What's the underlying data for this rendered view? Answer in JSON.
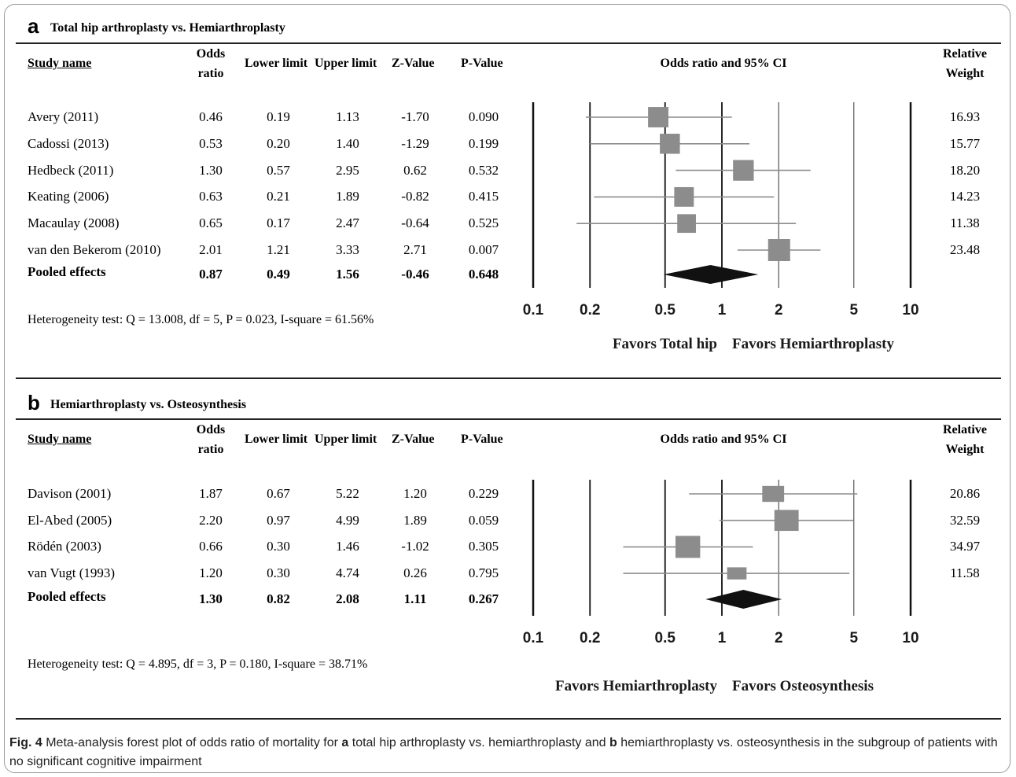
{
  "caption": {
    "label": "Fig. 4",
    "parts": [
      {
        "t": " Meta-analysis forest plot of odds ratio of mortality for ",
        "b": false
      },
      {
        "t": "a",
        "b": true
      },
      {
        "t": " total hip arthroplasty vs. hemiarthroplasty and ",
        "b": false
      },
      {
        "t": "b",
        "b": true
      },
      {
        "t": " hemiarthroplasty vs. osteosynthesis in the subgroup of patients with no significant cognitive impairment",
        "b": false
      }
    ]
  },
  "columns": {
    "study": "Study name",
    "odds_line1": "Odds",
    "odds_line2": "ratio",
    "lower": "Lower limit",
    "upper": "Upper limit",
    "z": "Z-Value",
    "p": "P-Value",
    "plot": "Odds ratio and 95% CI",
    "weight_line1": "Relative",
    "weight_line2": "Weight"
  },
  "chart_data": [
    {
      "type": "scatter",
      "panel": "a",
      "title": "Total hip arthroplasty vs. Hemiarthroplasty",
      "x_scale": "log",
      "xlim": [
        0.1,
        10
      ],
      "x_ticks": [
        "0.1",
        "0.2",
        "0.5",
        "1",
        "2",
        "5",
        "10"
      ],
      "favors_left": "Favors Total hip",
      "favors_right": "Favors Hemiarthroplasty",
      "heterogeneity": "Heterogeneity test: Q = 13.008, df = 5, P = 0.023, I-square = 61.56%",
      "studies": [
        {
          "name": "Avery (2011)",
          "or": "0.46",
          "lower": "0.19",
          "upper": "1.13",
          "z": "-1.70",
          "p": "0.090",
          "weight": "16.93"
        },
        {
          "name": "Cadossi (2013)",
          "or": "0.53",
          "lower": "0.20",
          "upper": "1.40",
          "z": "-1.29",
          "p": "0.199",
          "weight": "15.77"
        },
        {
          "name": "Hedbeck (2011)",
          "or": "1.30",
          "lower": "0.57",
          "upper": "2.95",
          "z": "0.62",
          "p": "0.532",
          "weight": "18.20"
        },
        {
          "name": "Keating (2006)",
          "or": "0.63",
          "lower": "0.21",
          "upper": "1.89",
          "z": "-0.82",
          "p": "0.415",
          "weight": "14.23"
        },
        {
          "name": "Macaulay (2008)",
          "or": "0.65",
          "lower": "0.17",
          "upper": "2.47",
          "z": "-0.64",
          "p": "0.525",
          "weight": "11.38"
        },
        {
          "name": "van den Bekerom (2010)",
          "or": "2.01",
          "lower": "1.21",
          "upper": "3.33",
          "z": "2.71",
          "p": "0.007",
          "weight": "23.48"
        }
      ],
      "pooled": {
        "name": "Pooled effects",
        "or": "0.87",
        "lower": "0.49",
        "upper": "1.56",
        "z": "-0.46",
        "p": "0.648"
      }
    },
    {
      "type": "scatter",
      "panel": "b",
      "title": "Hemiarthroplasty vs. Osteosynthesis",
      "x_scale": "log",
      "xlim": [
        0.1,
        10
      ],
      "x_ticks": [
        "0.1",
        "0.2",
        "0.5",
        "1",
        "2",
        "5",
        "10"
      ],
      "favors_left": "Favors Hemiarthroplasty",
      "favors_right": "Favors Osteosynthesis",
      "heterogeneity": "Heterogeneity test: Q = 4.895, df = 3, P = 0.180, I-square = 38.71%",
      "studies": [
        {
          "name": "Davison (2001)",
          "or": "1.87",
          "lower": "0.67",
          "upper": "5.22",
          "z": "1.20",
          "p": "0.229",
          "weight": "20.86"
        },
        {
          "name": "El-Abed (2005)",
          "or": "2.20",
          "lower": "0.97",
          "upper": "4.99",
          "z": "1.89",
          "p": "0.059",
          "weight": "32.59"
        },
        {
          "name": "Rödén (2003)",
          "or": "0.66",
          "lower": "0.30",
          "upper": "1.46",
          "z": "-1.02",
          "p": "0.305",
          "weight": "34.97"
        },
        {
          "name": "van Vugt (1993)",
          "or": "1.20",
          "lower": "0.30",
          "upper": "4.74",
          "z": "0.26",
          "p": "0.795",
          "weight": "11.58"
        }
      ],
      "pooled": {
        "name": "Pooled effects",
        "or": "1.30",
        "lower": "0.82",
        "upper": "2.08",
        "z": "1.11",
        "p": "0.267"
      }
    }
  ],
  "colors": {
    "marker": "#8c8c8c",
    "ci_line": "#8c8c8c",
    "diamond": "#111111",
    "axis": "#111111",
    "grid": "#555555"
  }
}
